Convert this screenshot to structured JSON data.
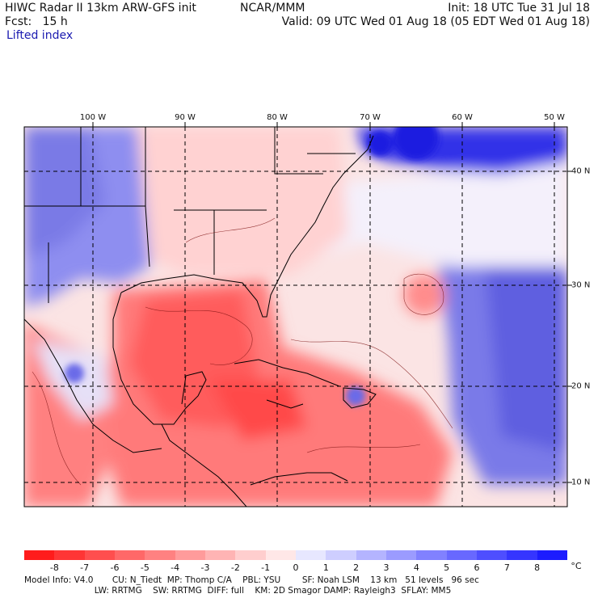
{
  "header": {
    "line1_left": "HIWC Radar II 13km ARW-GFS init",
    "ncar": "NCAR/MMM",
    "init": "Init: 18 UTC Tue 31 Jul 18",
    "fcst": "Fcst:   15 h",
    "valid": "Valid: 09 UTC Wed 01 Aug 18 (05 EDT Wed 01 Aug 18)",
    "field": "Lifted index"
  },
  "map": {
    "lon_labels": [
      "100 W",
      "90 W",
      "80 W",
      "70 W",
      "60 W",
      "50 W"
    ],
    "lat_labels": [
      "40 N",
      "30 N",
      "20 N",
      "10 N"
    ]
  },
  "colorbar": {
    "unit": "°C",
    "labels": [
      "-8",
      "-7",
      "-6",
      "-5",
      "-4",
      "-3",
      "-2",
      "-1",
      "0",
      "1",
      "2",
      "3",
      "4",
      "5",
      "6",
      "7",
      "8"
    ],
    "colors": [
      "#ff1c1c",
      "#ff3535",
      "#ff4e4e",
      "#ff6868",
      "#ff8181",
      "#ff9b9b",
      "#ffb4b4",
      "#ffcece",
      "#ffe7e7",
      "#e7e7ff",
      "#ceceff",
      "#b4b4ff",
      "#9b9bff",
      "#8181ff",
      "#6868ff",
      "#4e4eff",
      "#3535ff",
      "#1c1cff"
    ]
  },
  "footer": {
    "line1": "Model Info: V4.0       CU: N_Tiedt  MP: Thomp C/A    PBL: YSU        SF: Noah LSM    13 km   51 levels   96 sec",
    "line2": "                          LW: RRTMG    SW: RRTMG  DIFF: full    KM: 2D Smagor DAMP: Rayleigh3  SFLAY: MM5"
  }
}
